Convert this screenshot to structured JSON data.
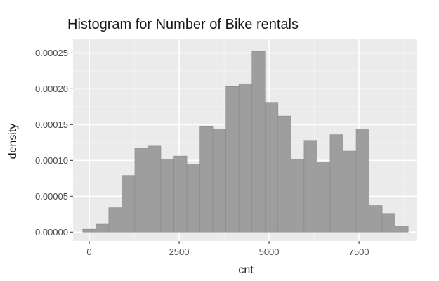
{
  "chart_data": {
    "type": "bar",
    "title": "Histogram for Number of Bike rentals",
    "xlabel": "cnt",
    "ylabel": "density",
    "xlim": [
      -450,
      9100
    ],
    "ylim": [
      -1.25e-05,
      0.00027
    ],
    "x_ticks": [
      0,
      2500,
      5000,
      7500
    ],
    "x_tick_labels": [
      "0",
      "2500",
      "5000",
      "7500"
    ],
    "y_ticks": [
      0,
      5e-05,
      0.0001,
      0.00015,
      0.0002,
      0.00025
    ],
    "y_tick_labels": [
      "0.00000",
      "0.00005",
      "0.00010",
      "0.00015",
      "0.00020",
      "0.00025"
    ],
    "grid": true,
    "bin_width": 362,
    "bin_centers": [
      0,
      362,
      724,
      1086,
      1448,
      1810,
      2172,
      2534,
      2896,
      3258,
      3620,
      3982,
      4344,
      4706,
      5068,
      5430,
      5792,
      6154,
      6516,
      6878,
      7240,
      7602,
      7964,
      8326,
      8688
    ],
    "values": [
      4e-06,
      1.1e-05,
      3.4e-05,
      7.9e-05,
      0.000117,
      0.00012,
      0.000102,
      0.000106,
      9.5e-05,
      0.000147,
      0.000144,
      0.000203,
      0.000207,
      0.000252,
      0.000181,
      0.000162,
      0.000102,
      0.000128,
      9.8e-05,
      0.000136,
      0.000113,
      0.000144,
      3.7e-05,
      2.6e-05,
      8e-06
    ]
  }
}
